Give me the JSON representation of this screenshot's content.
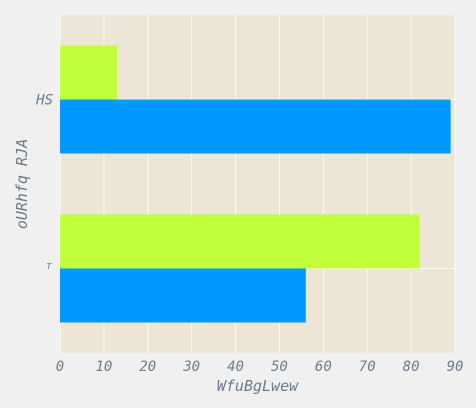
{
  "chart_data": {
    "type": "bar",
    "orientation": "horizontal",
    "categories": [
      "HS",
      "ᵀ"
    ],
    "series": [
      {
        "values": [
          13,
          82
        ],
        "color": "#c2ff3a"
      },
      {
        "values": [
          89,
          56
        ],
        "color": "#0099ff"
      }
    ],
    "xlabel": "WfuBgLwew",
    "ylabel": "oURhfq RJA",
    "xlim": [
      0,
      90
    ],
    "xticks": [
      0,
      10,
      20,
      30,
      40,
      50,
      60,
      70,
      80,
      90
    ],
    "grid": true,
    "legend": "none",
    "colors": {
      "plot_bg": "#ede6d6",
      "page_bg": "#f0f0f0",
      "grid": "#ffffff",
      "text": "#6b7b8a"
    }
  }
}
